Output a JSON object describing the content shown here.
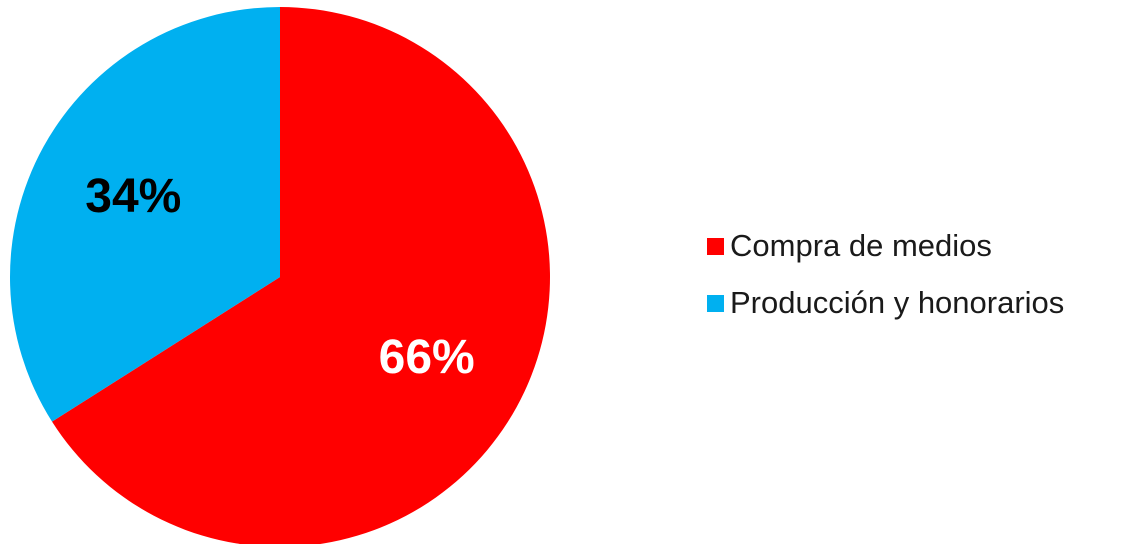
{
  "chart_data": {
    "type": "pie",
    "title": "",
    "categories": [
      "Compra de medios",
      "Producción y honorarios"
    ],
    "values": [
      66,
      34
    ],
    "value_unit": "%",
    "data_labels": [
      "66%",
      "34%"
    ],
    "colors": [
      "#ff0000",
      "#00b0f0"
    ],
    "data_label_colors": [
      "#ffffff",
      "#000000"
    ],
    "start_angle": "12 o'clock",
    "direction": "clockwise",
    "legend_position": "right"
  }
}
